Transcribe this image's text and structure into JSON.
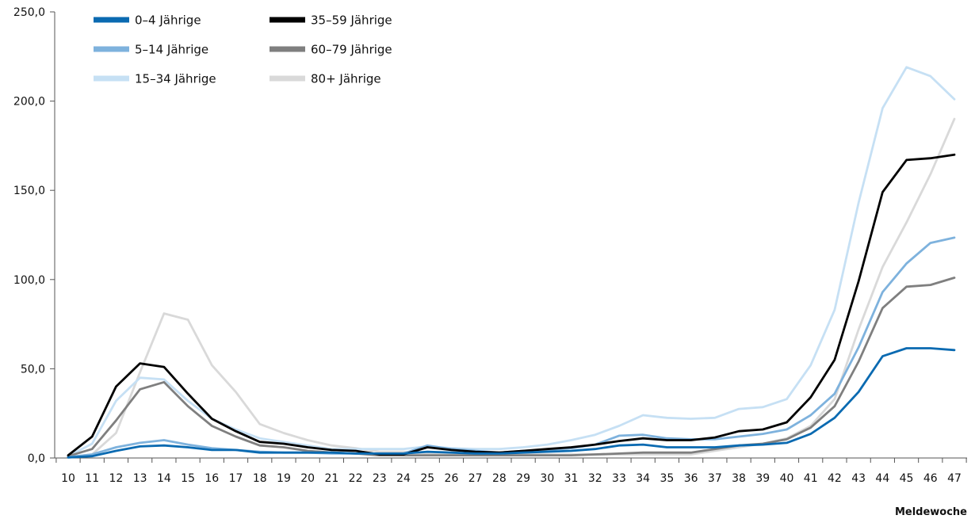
{
  "chart_data": {
    "type": "line",
    "xlabel": "Meldewoche",
    "ylabel": "",
    "title": "",
    "ylim": [
      0,
      250
    ],
    "y_ticks": [
      "0,0",
      "50,0",
      "100,0",
      "150,0",
      "200,0",
      "250,0"
    ],
    "categories": [
      "10",
      "11",
      "12",
      "13",
      "14",
      "15",
      "16",
      "17",
      "18",
      "19",
      "20",
      "21",
      "22",
      "23",
      "24",
      "25",
      "26",
      "27",
      "28",
      "29",
      "30",
      "31",
      "32",
      "33",
      "34",
      "35",
      "36",
      "37",
      "38",
      "39",
      "40",
      "41",
      "42",
      "43",
      "44",
      "45",
      "46",
      "47"
    ],
    "grid": false,
    "legend_position": "top-left",
    "series": [
      {
        "name": "0–4 Jährige",
        "color": "#0a6ab1",
        "values": [
          0.3,
          1,
          4,
          6.5,
          7,
          6,
          4.5,
          4.5,
          3,
          3,
          3,
          3,
          2.5,
          2.5,
          2.5,
          3.5,
          3,
          2.5,
          2.5,
          3,
          3.5,
          4,
          5,
          7,
          7.5,
          6,
          6,
          6,
          7,
          7.5,
          8.5,
          13.5,
          22.5,
          37,
          57,
          61.5,
          61.5,
          60.5
        ]
      },
      {
        "name": "5–14 Jährige",
        "color": "#7eb2dd",
        "values": [
          0.5,
          2,
          6,
          8.5,
          10,
          7.5,
          5.5,
          4.5,
          3.5,
          3,
          3,
          2.5,
          2.5,
          2.5,
          2.5,
          7,
          5,
          4,
          3,
          4,
          4.5,
          5.5,
          7.5,
          12.5,
          13,
          11,
          10.5,
          10.5,
          12,
          13.5,
          16,
          24,
          36,
          62,
          93,
          109,
          120.5,
          123.5
        ]
      },
      {
        "name": "15–34 Jährige",
        "color": "#c6e0f4",
        "values": [
          1,
          8,
          32,
          45,
          44,
          32,
          22,
          16,
          11,
          9,
          7,
          5,
          5,
          5,
          5,
          6.5,
          5.5,
          5,
          5,
          6,
          7.5,
          10,
          13,
          18,
          24,
          22.5,
          22,
          22.5,
          27.5,
          28.5,
          33,
          52,
          83,
          143,
          196,
          219,
          214,
          201
        ]
      },
      {
        "name": "35–59 Jährige",
        "color": "#000000",
        "values": [
          1.5,
          12,
          40,
          53,
          51,
          36,
          22,
          15,
          9,
          8,
          6,
          4.5,
          4,
          2,
          2,
          6,
          4.5,
          3.5,
          3,
          4,
          5,
          6,
          7.5,
          9.5,
          11,
          10,
          10,
          11.5,
          15,
          16,
          20,
          34,
          55,
          99,
          149,
          167,
          168,
          170
        ]
      },
      {
        "name": "60–79 Jährige",
        "color": "#7f7f7f",
        "values": [
          1,
          5,
          21,
          38.5,
          42.5,
          29,
          18,
          12,
          7,
          6,
          4,
          3,
          2.5,
          1.5,
          1.5,
          1.5,
          1.5,
          1.5,
          1.5,
          1.5,
          1.5,
          1.5,
          2,
          2.5,
          3,
          3,
          3,
          5,
          7,
          8,
          10.5,
          17,
          29,
          54,
          84,
          96,
          97,
          101
        ]
      },
      {
        "name": "80+ Jährige",
        "color": "#d9d9d9",
        "values": [
          0.5,
          2,
          14,
          48,
          81,
          77.5,
          52,
          37,
          19,
          14,
          10,
          7,
          5.5,
          3.5,
          3.5,
          2.5,
          2,
          2,
          1.5,
          2,
          2,
          2,
          2,
          2,
          2,
          2,
          2,
          4,
          6,
          8,
          11,
          18,
          33,
          72,
          107,
          132,
          159,
          190
        ]
      }
    ]
  }
}
